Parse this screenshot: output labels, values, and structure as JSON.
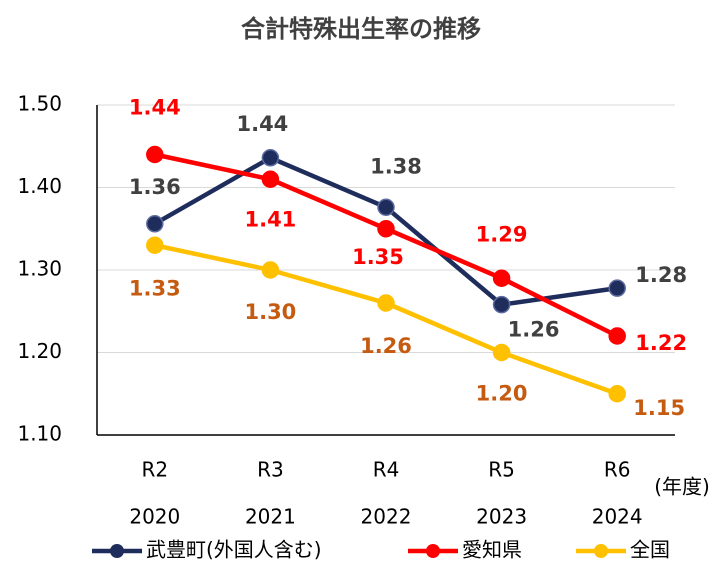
{
  "chart_data": {
    "type": "line",
    "title": "合計特殊出生率の推移",
    "categories": [
      "R2",
      "R3",
      "R4",
      "R5",
      "R6"
    ],
    "years": [
      "2020",
      "2021",
      "2022",
      "2023",
      "2024"
    ],
    "x_unit": "(年度)",
    "series": [
      {
        "name": "武豊町(外国人含む)",
        "color": "#1f2d5c",
        "label_color": "#404040",
        "values": [
          1.356,
          1.436,
          1.376,
          1.258,
          1.278
        ],
        "value_labels": [
          "1.36",
          "1.44",
          "1.38",
          "1.26",
          "1.28"
        ]
      },
      {
        "name": "愛知県",
        "color": "#ff0000",
        "label_color": "#ff0000",
        "values": [
          1.44,
          1.41,
          1.35,
          1.29,
          1.22
        ],
        "value_labels": [
          "1.44",
          "1.41",
          "1.35",
          "1.29",
          "1.22"
        ]
      },
      {
        "name": "全国",
        "color": "#ffc000",
        "label_color": "#c55a11",
        "values": [
          1.33,
          1.3,
          1.26,
          1.2,
          1.15
        ],
        "value_labels": [
          "1.33",
          "1.30",
          "1.26",
          "1.20",
          "1.15"
        ]
      }
    ],
    "ylim": [
      1.1,
      1.5
    ],
    "yticks": [
      {
        "value": 1.1,
        "label": "1.10"
      },
      {
        "value": 1.2,
        "label": "1.20"
      },
      {
        "value": 1.3,
        "label": "1.30"
      },
      {
        "value": 1.4,
        "label": "1.40"
      },
      {
        "value": 1.5,
        "label": "1.50"
      }
    ],
    "grid": true,
    "legend": "bottom"
  }
}
